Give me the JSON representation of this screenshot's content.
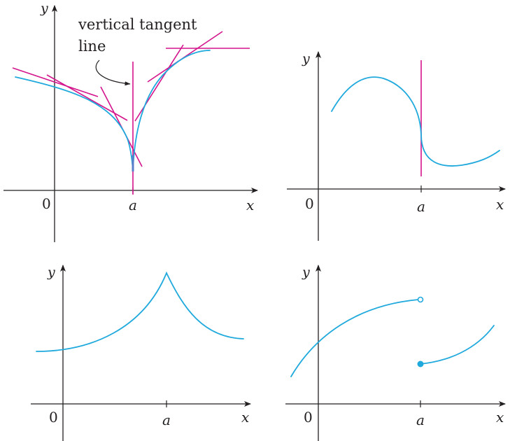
{
  "colors": {
    "curve": "#1fa9dd",
    "tangent": "#d4148c",
    "axis": "#231f20",
    "cusp_highlight": "#5b7ec9"
  },
  "annotation": {
    "line1": "vertical tangent",
    "line2": "line"
  },
  "panels": [
    {
      "id": "top-left",
      "description_icon": "vertical-tangent-cusp",
      "y_label": "y",
      "x_label": "x",
      "origin_label": "0",
      "a_label": "a"
    },
    {
      "id": "top-right",
      "description_icon": "vertical-tangent-inflection",
      "y_label": "y",
      "x_label": "x",
      "origin_label": "0",
      "a_label": "a"
    },
    {
      "id": "bottom-left",
      "description_icon": "corner",
      "y_label": "y",
      "x_label": "x",
      "origin_label": "0",
      "a_label": "a"
    },
    {
      "id": "bottom-right",
      "description_icon": "jump-discontinuity",
      "y_label": "y",
      "x_label": "x",
      "origin_label": "0",
      "a_label": "a"
    }
  ]
}
